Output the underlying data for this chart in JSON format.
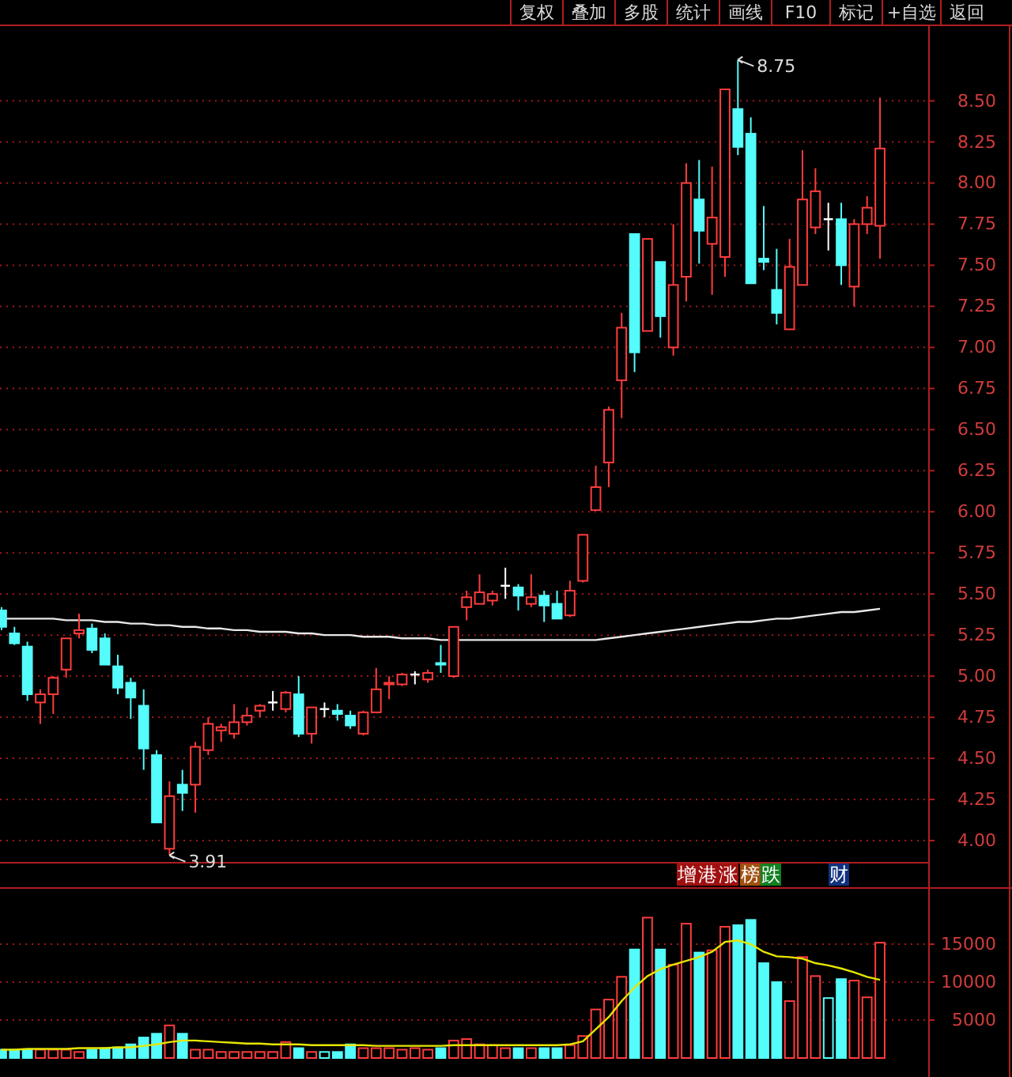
{
  "chart_data": [
    {
      "type": "candlestick",
      "categories": [
        null,
        null,
        null,
        null,
        null,
        null,
        null,
        null,
        null,
        null,
        null,
        null,
        null,
        null,
        null,
        null,
        null,
        null,
        null,
        null,
        null,
        null,
        null,
        null,
        null,
        null,
        null,
        null,
        null,
        null,
        null,
        null,
        null,
        null,
        null,
        null,
        null,
        null,
        null,
        null,
        null,
        null,
        null,
        null,
        null,
        null,
        null,
        null,
        null,
        null,
        null,
        null,
        null,
        null,
        null,
        null,
        null,
        null,
        null,
        null,
        null,
        null,
        null,
        null,
        null,
        null,
        null,
        null,
        null
      ],
      "ohlc": [
        [
          5.4,
          5.42,
          5.28,
          5.3
        ],
        [
          5.26,
          5.3,
          5.19,
          5.2
        ],
        [
          5.18,
          5.21,
          4.85,
          4.89
        ],
        [
          4.84,
          4.92,
          4.71,
          4.89
        ],
        [
          4.89,
          5.0,
          4.77,
          4.99
        ],
        [
          5.04,
          5.23,
          4.99,
          5.23
        ],
        [
          5.26,
          5.38,
          5.23,
          5.28
        ],
        [
          5.29,
          5.32,
          5.14,
          5.16
        ],
        [
          5.23,
          5.26,
          5.07,
          5.07
        ],
        [
          5.06,
          5.13,
          4.89,
          4.93
        ],
        [
          4.96,
          4.99,
          4.74,
          4.87
        ],
        [
          4.82,
          4.92,
          4.43,
          4.56
        ],
        [
          4.52,
          4.55,
          4.11,
          4.11
        ],
        [
          3.95,
          4.36,
          3.91,
          4.27
        ],
        [
          4.34,
          4.43,
          4.18,
          4.29
        ],
        [
          4.34,
          4.6,
          4.17,
          4.57
        ],
        [
          4.55,
          4.75,
          4.52,
          4.71
        ],
        [
          4.67,
          4.71,
          4.6,
          4.69
        ],
        [
          4.65,
          4.83,
          4.62,
          4.72
        ],
        [
          4.72,
          4.81,
          4.7,
          4.76
        ],
        [
          4.79,
          4.83,
          4.75,
          4.82
        ],
        [
          4.84,
          4.91,
          4.79,
          4.84
        ],
        [
          4.8,
          4.91,
          4.78,
          4.9
        ],
        [
          4.89,
          5.0,
          4.63,
          4.65
        ],
        [
          4.65,
          4.81,
          4.59,
          4.81
        ],
        [
          4.8,
          4.84,
          4.75,
          4.8
        ],
        [
          4.79,
          4.83,
          4.73,
          4.77
        ],
        [
          4.76,
          4.79,
          4.68,
          4.7
        ],
        [
          4.65,
          4.79,
          4.64,
          4.78
        ],
        [
          4.78,
          5.05,
          4.78,
          4.92
        ],
        [
          4.95,
          5.0,
          4.86,
          4.96
        ],
        [
          4.95,
          5.02,
          4.94,
          5.01
        ],
        [
          5.01,
          5.03,
          4.95,
          5.01
        ],
        [
          4.98,
          5.04,
          4.96,
          5.02
        ],
        [
          5.08,
          5.19,
          5.02,
          5.07
        ],
        [
          5.0,
          5.3,
          4.99,
          5.3
        ],
        [
          5.42,
          5.52,
          5.34,
          5.48
        ],
        [
          5.44,
          5.62,
          5.44,
          5.51
        ],
        [
          5.46,
          5.52,
          5.43,
          5.5
        ],
        [
          5.55,
          5.66,
          5.47,
          5.55
        ],
        [
          5.54,
          5.56,
          5.4,
          5.49
        ],
        [
          5.44,
          5.62,
          5.42,
          5.48
        ],
        [
          5.49,
          5.52,
          5.33,
          5.43
        ],
        [
          5.44,
          5.52,
          5.35,
          5.35
        ],
        [
          5.37,
          5.58,
          5.36,
          5.52
        ],
        [
          5.58,
          5.86,
          5.57,
          5.86
        ],
        [
          6.01,
          6.28,
          6.01,
          6.15
        ],
        [
          6.3,
          6.64,
          6.15,
          6.62
        ],
        [
          6.8,
          7.21,
          6.57,
          7.12
        ],
        [
          7.69,
          7.69,
          6.85,
          6.97
        ],
        [
          7.1,
          7.66,
          7.1,
          7.66
        ],
        [
          7.52,
          7.52,
          7.06,
          7.19
        ],
        [
          7.0,
          7.75,
          6.95,
          7.38
        ],
        [
          7.43,
          8.12,
          7.28,
          8.0
        ],
        [
          7.9,
          8.14,
          7.51,
          7.71
        ],
        [
          7.63,
          8.1,
          7.32,
          7.79
        ],
        [
          7.55,
          8.57,
          7.43,
          8.57
        ],
        [
          8.45,
          8.75,
          8.17,
          8.22
        ],
        [
          8.3,
          8.4,
          7.39,
          7.39
        ],
        [
          7.54,
          7.86,
          7.47,
          7.52
        ],
        [
          7.35,
          7.6,
          7.14,
          7.21
        ],
        [
          7.11,
          7.66,
          7.11,
          7.49
        ],
        [
          7.38,
          8.2,
          7.38,
          7.9
        ],
        [
          7.73,
          8.09,
          7.69,
          7.95
        ],
        [
          7.78,
          7.88,
          7.59,
          7.78
        ],
        [
          7.78,
          7.88,
          7.38,
          7.5
        ],
        [
          7.37,
          7.78,
          7.25,
          7.75
        ],
        [
          7.75,
          7.92,
          7.69,
          7.85
        ],
        [
          7.74,
          8.52,
          7.54,
          8.21
        ]
      ],
      "series": [
        {
          "type": "line",
          "color": "#e8e8e8",
          "values": [
            5.35,
            5.35,
            5.35,
            5.35,
            5.35,
            5.34,
            5.34,
            5.34,
            5.33,
            5.33,
            5.32,
            5.32,
            5.31,
            5.31,
            5.3,
            5.3,
            5.29,
            5.29,
            5.28,
            5.28,
            5.27,
            5.27,
            5.27,
            5.26,
            5.26,
            5.25,
            5.25,
            5.25,
            5.24,
            5.24,
            5.24,
            5.23,
            5.23,
            5.23,
            5.22,
            5.22,
            5.22,
            5.22,
            5.22,
            5.22,
            5.22,
            5.22,
            5.22,
            5.22,
            5.22,
            5.22,
            5.22,
            5.23,
            5.24,
            5.25,
            5.26,
            5.27,
            5.28,
            5.29,
            5.3,
            5.31,
            5.32,
            5.33,
            5.33,
            5.34,
            5.35,
            5.35,
            5.36,
            5.37,
            5.38,
            5.39,
            5.39,
            5.4,
            5.41
          ]
        }
      ],
      "ylim": [
        3.87,
        8.95
      ],
      "yticks": [
        {
          "value": 4.0,
          "label": "4.00"
        },
        {
          "value": 4.25,
          "label": "4.25"
        },
        {
          "value": 4.5,
          "label": "4.50"
        },
        {
          "value": 4.75,
          "label": "4.75"
        },
        {
          "value": 5.0,
          "label": "5.00"
        },
        {
          "value": 5.25,
          "label": "5.25"
        },
        {
          "value": 5.5,
          "label": "5.50"
        },
        {
          "value": 5.75,
          "label": "5.75"
        },
        {
          "value": 6.0,
          "label": "6.00"
        },
        {
          "value": 6.25,
          "label": "6.25"
        },
        {
          "value": 6.5,
          "label": "6.50"
        },
        {
          "value": 6.75,
          "label": "6.75"
        },
        {
          "value": 7.0,
          "label": "7.00"
        },
        {
          "value": 7.25,
          "label": "7.25"
        },
        {
          "value": 7.5,
          "label": "7.50"
        },
        {
          "value": 7.75,
          "label": "7.75"
        },
        {
          "value": 8.0,
          "label": "8.00"
        },
        {
          "value": 8.25,
          "label": "8.25"
        },
        {
          "value": 8.5,
          "label": "8.50"
        }
      ],
      "grid": "y",
      "tick_labels": "y",
      "annotations": [
        "8.75",
        "3.91",
        "复权",
        "叠加",
        "多股",
        "统计",
        "画线",
        "F10",
        "标记",
        "+自选",
        "返回"
      ]
    },
    {
      "type": "bar",
      "categories": [
        null,
        null,
        null,
        null,
        null,
        null,
        null,
        null,
        null,
        null,
        null,
        null,
        null,
        null,
        null,
        null,
        null,
        null,
        null,
        null,
        null,
        null,
        null,
        null,
        null,
        null,
        null,
        null,
        null,
        null,
        null,
        null,
        null,
        null,
        null,
        null,
        null,
        null,
        null,
        null,
        null,
        null,
        null,
        null,
        null,
        null,
        null,
        null,
        null,
        null,
        null,
        null,
        null,
        null,
        null,
        null,
        null,
        null,
        null,
        null,
        null,
        null,
        null,
        null,
        null,
        null,
        null,
        null,
        null
      ],
      "series": [
        {
          "values": [
            1100,
            1100,
            1100,
            1100,
            1100,
            1100,
            800,
            1100,
            1300,
            1400,
            1800,
            2700,
            3200,
            4300,
            3200,
            1100,
            1100,
            800,
            800,
            800,
            800,
            800,
            2100,
            1300,
            800,
            800,
            800,
            1800,
            1300,
            1300,
            1300,
            1100,
            1300,
            1100,
            1300,
            2300,
            2500,
            1800,
            1700,
            1300,
            1300,
            1300,
            1300,
            1300,
            1700,
            2900,
            6400,
            7700,
            10700,
            14300,
            18500,
            14300,
            12300,
            17700,
            13900,
            14200,
            17300,
            17500,
            18200,
            12500,
            10000,
            7500,
            13300,
            10800,
            7900,
            10400,
            10200,
            8000,
            15200
          ],
          "colors": [
            "#54fcfc",
            "#54fcfc",
            "#54fcfc",
            "#ff3c3c",
            "#ff3c3c",
            "#ff3c3c",
            "#ff3c3c",
            "#54fcfc",
            "#54fcfc",
            "#54fcfc",
            "#54fcfc",
            "#54fcfc",
            "#54fcfc",
            "#ff3c3c",
            "#54fcfc",
            "#ff3c3c",
            "#ff3c3c",
            "#ff3c3c",
            "#ff3c3c",
            "#ff3c3c",
            "#ff3c3c",
            "#ff3c3c",
            "#ff3c3c",
            "#54fcfc",
            "#ff3c3c",
            "#54fcfc",
            "#54fcfc",
            "#54fcfc",
            "#ff3c3c",
            "#ff3c3c",
            "#ff3c3c",
            "#ff3c3c",
            "#ff3c3c",
            "#ff3c3c",
            "#54fcfc",
            "#ff3c3c",
            "#ff3c3c",
            "#ff3c3c",
            "#ff3c3c",
            "#ff3c3c",
            "#54fcfc",
            "#ff3c3c",
            "#54fcfc",
            "#54fcfc",
            "#ff3c3c",
            "#ff3c3c",
            "#ff3c3c",
            "#ff3c3c",
            "#ff3c3c",
            "#54fcfc",
            "#ff3c3c",
            "#54fcfc",
            "#ff3c3c",
            "#ff3c3c",
            "#54fcfc",
            "#ff3c3c",
            "#ff3c3c",
            "#54fcfc",
            "#54fcfc",
            "#54fcfc",
            "#54fcfc",
            "#ff3c3c",
            "#ff3c3c",
            "#ff3c3c",
            "#54fcfc",
            "#54fcfc",
            "#ff3c3c",
            "#ff3c3c",
            "#ff3c3c"
          ]
        },
        {
          "type": "line",
          "color": "#e6e600",
          "values": [
            1100,
            1100,
            1200,
            1200,
            1200,
            1200,
            1300,
            1300,
            1300,
            1400,
            1400,
            1600,
            1800,
            2100,
            2300,
            2300,
            2200,
            2100,
            2000,
            1900,
            1900,
            1800,
            1800,
            1800,
            1700,
            1700,
            1700,
            1700,
            1700,
            1600,
            1600,
            1600,
            1600,
            1600,
            1600,
            1700,
            1700,
            1700,
            1700,
            1700,
            1700,
            1700,
            1700,
            1700,
            1800,
            2200,
            3800,
            5400,
            7500,
            9300,
            10800,
            11700,
            12300,
            12800,
            13300,
            14000,
            15300,
            15500,
            15000,
            14000,
            13400,
            13300,
            13100,
            12500,
            12200,
            11800,
            11300,
            10700,
            10300
          ]
        }
      ],
      "ylim": [
        0,
        22300
      ],
      "yticks": [
        5000,
        10000,
        15000
      ],
      "grid": "y",
      "tick_labels": "y",
      "annotations": [
        "增",
        "港",
        "涨",
        "榜",
        "跌",
        "财"
      ]
    }
  ]
}
